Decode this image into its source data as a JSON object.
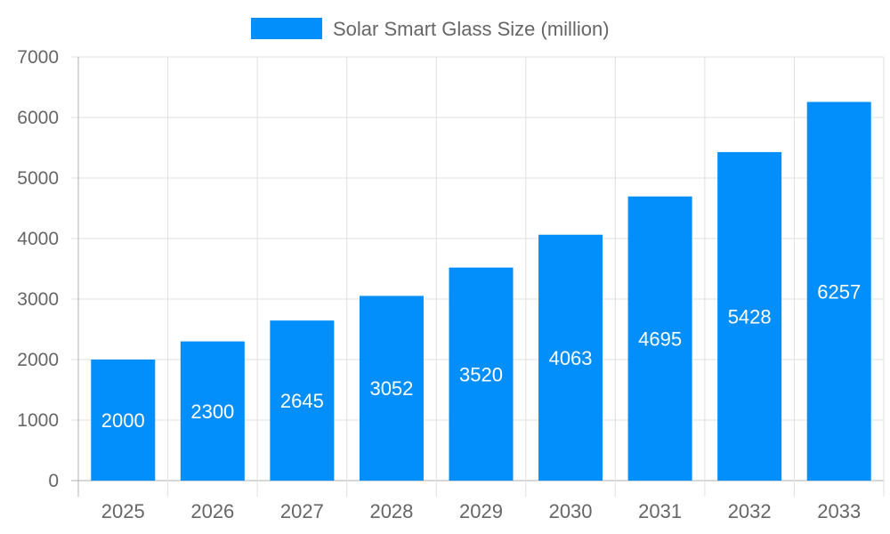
{
  "chart_data": {
    "type": "bar",
    "title": "",
    "xlabel": "",
    "ylabel": "",
    "categories": [
      "2025",
      "2026",
      "2027",
      "2028",
      "2029",
      "2030",
      "2031",
      "2032",
      "2033"
    ],
    "series": [
      {
        "name": "Solar Smart Glass Size (million)",
        "values": [
          2000,
          2300,
          2645,
          3052,
          3520,
          4063,
          4695,
          5428,
          6257
        ],
        "color": "#038ffb"
      }
    ],
    "ylim": [
      0,
      7000
    ],
    "yticks": [
      0,
      1000,
      2000,
      3000,
      4000,
      5000,
      6000,
      7000
    ],
    "grid": true,
    "legend": "top-center",
    "data_labels": true
  }
}
